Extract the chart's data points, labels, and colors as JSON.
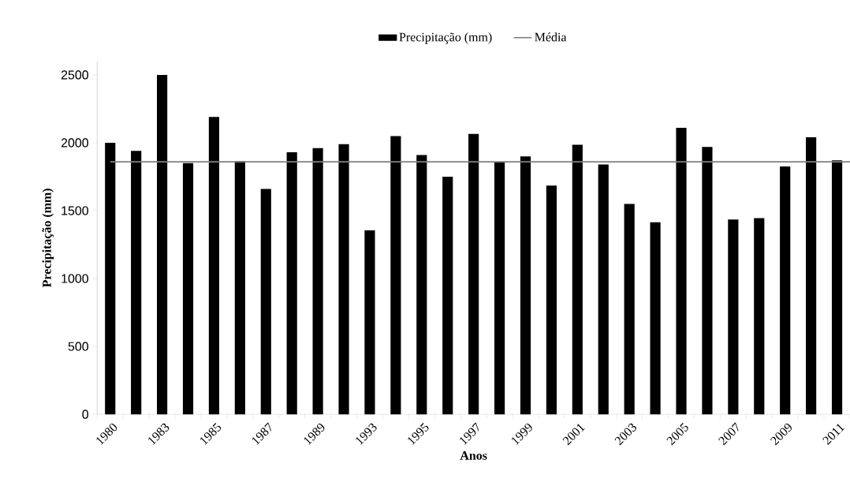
{
  "chart_data": {
    "type": "bar",
    "xlabel": "Anos",
    "ylabel": "Precipitação (mm)",
    "categories": [
      "1980",
      null,
      "1983",
      null,
      "1985",
      null,
      "1987",
      null,
      "1989",
      null,
      "1993",
      null,
      "1995",
      null,
      "1997",
      null,
      "1999",
      null,
      "2001",
      null,
      "2003",
      null,
      "2005",
      null,
      "2007",
      null,
      "2009",
      null,
      "2011"
    ],
    "series": [
      {
        "name": "Precipitação (mm)",
        "color": "#000000",
        "values": [
          2000,
          1940,
          2500,
          1850,
          2190,
          1865,
          1660,
          1930,
          1960,
          1990,
          1355,
          2050,
          1910,
          1750,
          2065,
          1860,
          1900,
          1685,
          1985,
          1840,
          1550,
          1415,
          2110,
          1970,
          1435,
          1445,
          1825,
          2040,
          1870
        ]
      }
    ],
    "ylim": [
      0,
      2600
    ],
    "yticks": [
      0,
      500,
      1000,
      1500,
      2000,
      2500
    ],
    "ref_lines": [
      {
        "axis": "y",
        "value": 1860,
        "label": "Média",
        "color": "#808080"
      }
    ],
    "legend": "top"
  }
}
